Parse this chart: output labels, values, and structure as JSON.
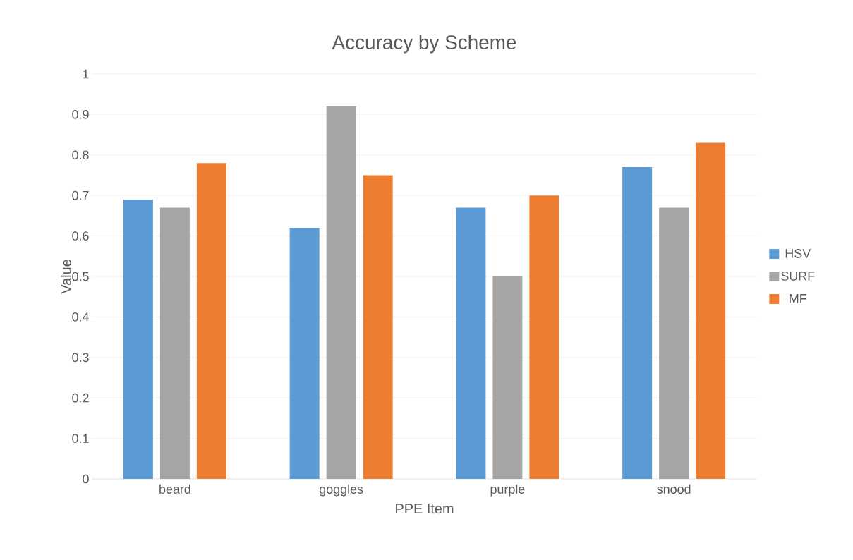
{
  "chart_data": {
    "type": "bar",
    "title": "Accuracy by Scheme",
    "xlabel": "PPE Item",
    "ylabel": "Value",
    "categories": [
      "beard",
      "goggles",
      "purple",
      "snood"
    ],
    "series": [
      {
        "name": "HSV",
        "color": "#5b9bd5",
        "values": [
          0.69,
          0.62,
          0.67,
          0.77
        ]
      },
      {
        "name": "SURF",
        "color": "#a5a5a5",
        "values": [
          0.67,
          0.92,
          0.5,
          0.67
        ]
      },
      {
        "name": "MF",
        "color": "#ed7d31",
        "values": [
          0.78,
          0.75,
          0.7,
          0.83
        ]
      }
    ],
    "ylim": [
      0,
      1
    ],
    "yticks": [
      0,
      0.1,
      0.2,
      0.3,
      0.4,
      0.5,
      0.6,
      0.7,
      0.8,
      0.9,
      1
    ],
    "grid": "y",
    "legend": "right"
  }
}
